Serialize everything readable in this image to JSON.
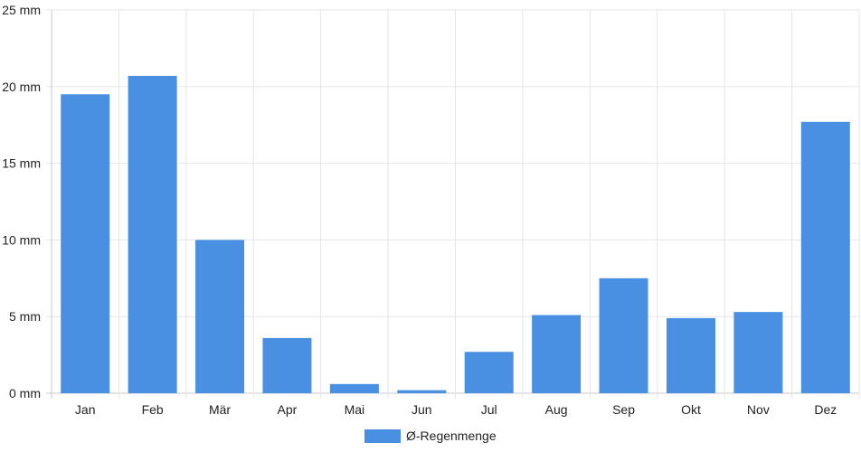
{
  "chart_data": {
    "type": "bar",
    "categories": [
      "Jan",
      "Feb",
      "Mär",
      "Apr",
      "Mai",
      "Jun",
      "Jul",
      "Aug",
      "Sep",
      "Okt",
      "Nov",
      "Dez"
    ],
    "series": [
      {
        "name": "Ø-Regenmenge",
        "values": [
          19.5,
          20.7,
          10.0,
          3.6,
          0.6,
          0.2,
          2.7,
          5.1,
          7.5,
          4.9,
          5.3,
          17.7
        ],
        "color": "#4a90e2"
      }
    ],
    "ylim": [
      0,
      25
    ],
    "yticks": [
      "0 mm",
      "5 mm",
      "10 mm",
      "15 mm",
      "20 mm",
      "25 mm"
    ],
    "grid": true,
    "legend": "bottom-center",
    "title": "",
    "xlabel": "",
    "ylabel": ""
  }
}
